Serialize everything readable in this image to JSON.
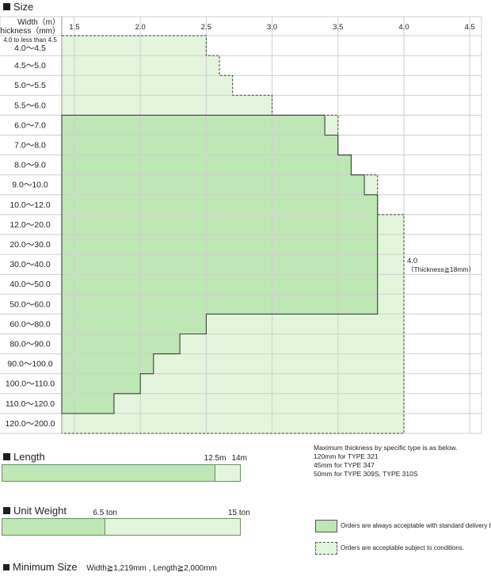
{
  "sections": {
    "size_title": "Size",
    "length_title": "Length",
    "unit_weight_title": "Unit Weight",
    "minimum_size_title": "Minimum Size",
    "minimum_size_value": "Width≧1,219mm , Length≧2,000mm"
  },
  "header": {
    "width_label": "Width（m）",
    "thickness_label": "Thickness（mm）",
    "sub_label": "4.0 to less than 4.5"
  },
  "colors": {
    "standard_fill": "#bfe6b5",
    "conditional_fill": "#e3f5dc",
    "grid_line": "#cfcfcf",
    "border": "#555555"
  },
  "chart_data": {
    "type": "step-area",
    "x_ticks": [
      "1.5",
      "2.0",
      "2.5",
      "3.0",
      "3.5",
      "4.0",
      "4.5"
    ],
    "x_values": [
      1.5,
      2.0,
      2.5,
      3.0,
      3.5,
      4.0,
      4.5
    ],
    "x_range": [
      1.5,
      4.6
    ],
    "rows": [
      {
        "label": "4.0～4.5",
        "std": null,
        "cond_max": 2.5
      },
      {
        "label": "4.5～5.0",
        "std": null,
        "cond_max": 2.6
      },
      {
        "label": "5.0～5.5",
        "std": null,
        "cond_max": 2.7
      },
      {
        "label": "5.5～6.0",
        "std": null,
        "cond_max": 3.0
      },
      {
        "label": "6.0～7.0",
        "std": [
          1.5,
          3.4
        ],
        "cond_max": 3.5
      },
      {
        "label": "7.0～8.0",
        "std": [
          1.5,
          3.5
        ],
        "cond_max": 3.5
      },
      {
        "label": "8.0～9.0",
        "std": [
          1.5,
          3.6
        ],
        "cond_max": 3.6
      },
      {
        "label": "9.0～10.0",
        "std": [
          1.5,
          3.7
        ],
        "cond_max": 3.8
      },
      {
        "label": "10.0～12.0",
        "std": [
          1.5,
          3.8
        ],
        "cond_max": 3.8
      },
      {
        "label": "12.0～20.0",
        "std": [
          1.5,
          3.8
        ],
        "cond_max": 4.0
      },
      {
        "label": "20.0～30.0",
        "std": [
          1.5,
          3.8
        ],
        "cond_max": 4.0
      },
      {
        "label": "30.0～40.0",
        "std": [
          1.5,
          3.8
        ],
        "cond_max": 4.0
      },
      {
        "label": "40.0～50.0",
        "std": [
          1.5,
          3.8
        ],
        "cond_max": 4.0
      },
      {
        "label": "50.0～60.0",
        "std": [
          1.5,
          3.8
        ],
        "cond_max": 4.0
      },
      {
        "label": "60.0～80.0",
        "std": [
          1.5,
          2.5
        ],
        "cond_max": 4.0
      },
      {
        "label": "80.0～90.0",
        "std": [
          1.5,
          2.3
        ],
        "cond_max": 4.0
      },
      {
        "label": "90.0～100.0",
        "std": [
          1.5,
          2.1
        ],
        "cond_max": 4.0
      },
      {
        "label": "100.0～110.0",
        "std": [
          1.5,
          2.0
        ],
        "cond_max": 4.0
      },
      {
        "label": "110.0～120.0",
        "std": [
          1.5,
          1.8
        ],
        "cond_max": 4.0
      },
      {
        "label": "120.0～200.0",
        "std": null,
        "cond_max": 4.0
      }
    ]
  },
  "annotation": {
    "value": "4.0",
    "condition": "（Thickness≧18mm）"
  },
  "notes": {
    "heading": "Maximum thickness by specific type is as below.",
    "lines": [
      "120mm for TYPE 321",
      "45mm for TYPE 347",
      "50mm for TYPE 309S, TYPE 310S"
    ]
  },
  "length_bar": {
    "std_label": "12.5m",
    "max_label": "14m",
    "std_value": 12.5,
    "max_value": 14
  },
  "weight_bar": {
    "std_label": "6.5 ton",
    "max_label": "15 ton",
    "std_value": 6.5,
    "max_value": 15
  },
  "legend": {
    "standard": "Orders are always acceptable with standard delivery time.",
    "conditional": "Orders are acceptable subject to conditions."
  }
}
